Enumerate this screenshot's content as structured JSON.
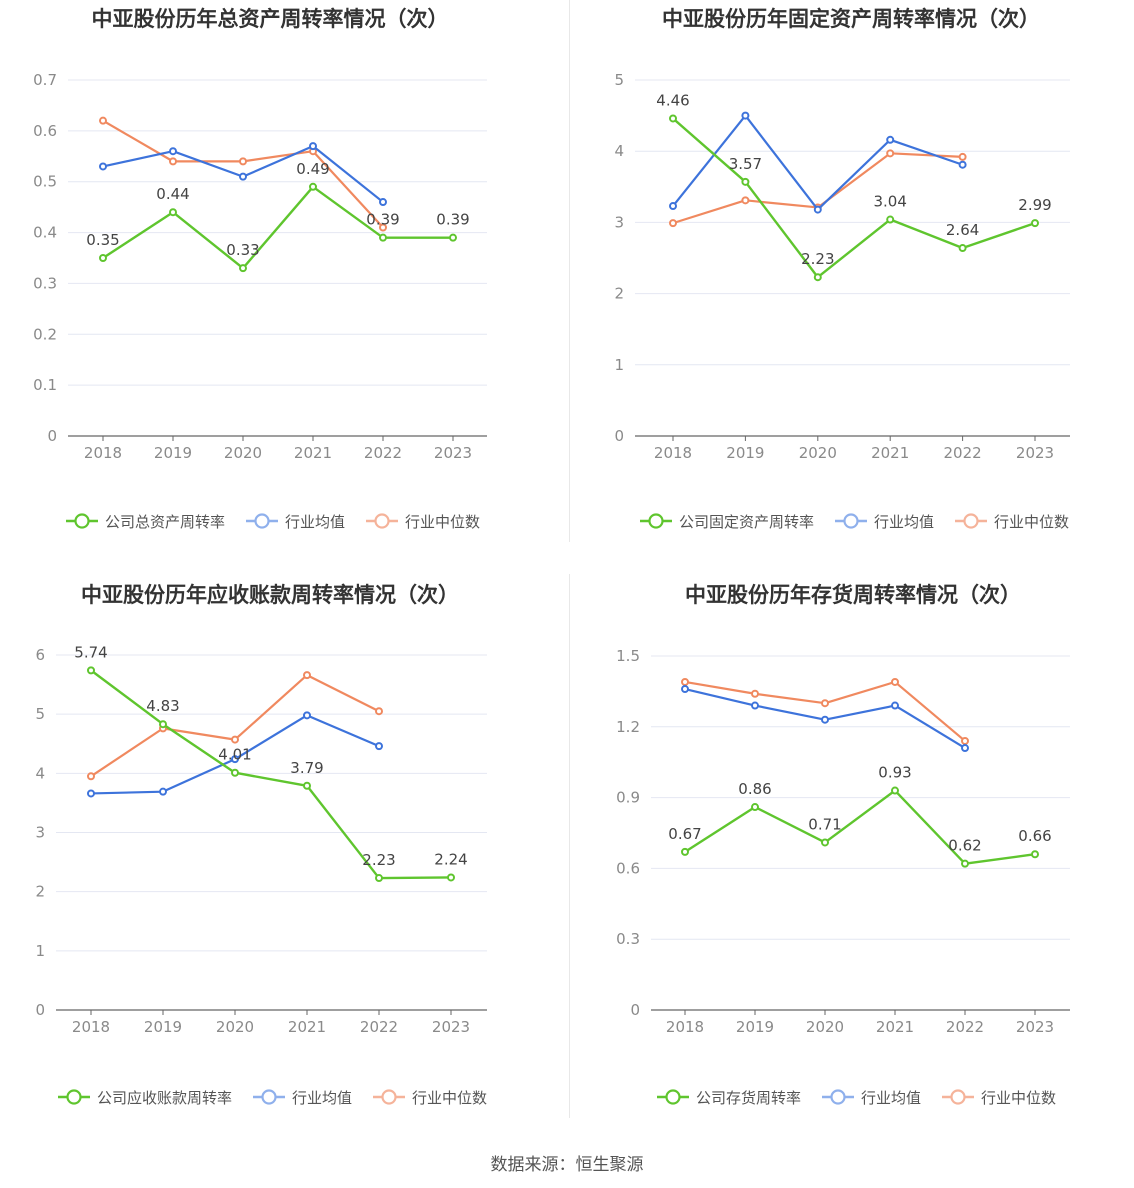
{
  "source": "数据来源：恒生聚源",
  "colors": {
    "company": "#5fc52e",
    "average": "#3d73db",
    "median": "#f0895f",
    "legend_avg": "#8fb0ec",
    "legend_med": "#f5b39a",
    "grid": "#e4e7f2",
    "axis": "#666666",
    "tick": "#8a8a8a",
    "title": "#333333"
  },
  "chart_data": [
    {
      "type": "line",
      "title": "中亚股份历年总资产周转率情况（次）",
      "categories": [
        "2018",
        "2019",
        "2020",
        "2021",
        "2022",
        "2023"
      ],
      "ylim": [
        0,
        0.7
      ],
      "yticks": [
        "0",
        "0.1",
        "0.2",
        "0.3",
        "0.4",
        "0.5",
        "0.6",
        "0.7"
      ],
      "legend": [
        "公司总资产周转率",
        "行业均值",
        "行业中位数"
      ],
      "series": [
        {
          "name": "公司总资产周转率",
          "role": "company",
          "values": [
            0.35,
            0.44,
            0.33,
            0.49,
            0.39,
            0.39
          ],
          "labels": [
            "0.35",
            "0.44",
            "0.33",
            "0.49",
            "0.39",
            "0.39"
          ]
        },
        {
          "name": "行业均值",
          "role": "average",
          "values": [
            0.53,
            0.56,
            0.51,
            0.57,
            0.46,
            null
          ]
        },
        {
          "name": "行业中位数",
          "role": "median",
          "values": [
            0.62,
            0.54,
            0.54,
            0.56,
            0.41,
            null
          ]
        }
      ]
    },
    {
      "type": "line",
      "title": "中亚股份历年固定资产周转率情况（次）",
      "categories": [
        "2018",
        "2019",
        "2020",
        "2021",
        "2022",
        "2023"
      ],
      "ylim": [
        0,
        5
      ],
      "yticks": [
        "0",
        "1",
        "2",
        "3",
        "4",
        "5"
      ],
      "legend": [
        "公司固定资产周转率",
        "行业均值",
        "行业中位数"
      ],
      "series": [
        {
          "name": "公司固定资产周转率",
          "role": "company",
          "values": [
            4.46,
            3.57,
            2.23,
            3.04,
            2.64,
            2.99
          ],
          "labels": [
            "4.46",
            "3.57",
            "2.23",
            "3.04",
            "2.64",
            "2.99"
          ]
        },
        {
          "name": "行业均值",
          "role": "average",
          "values": [
            3.23,
            4.5,
            3.18,
            4.16,
            3.81,
            null
          ]
        },
        {
          "name": "行业中位数",
          "role": "median",
          "values": [
            2.99,
            3.31,
            3.21,
            3.97,
            3.92,
            null
          ]
        }
      ]
    },
    {
      "type": "line",
      "title": "中亚股份历年应收账款周转率情况（次）",
      "categories": [
        "2018",
        "2019",
        "2020",
        "2021",
        "2022",
        "2023"
      ],
      "ylim": [
        0,
        6
      ],
      "yticks": [
        "0",
        "1",
        "2",
        "3",
        "4",
        "5",
        "6"
      ],
      "legend": [
        "公司应收账款周转率",
        "行业均值",
        "行业中位数"
      ],
      "series": [
        {
          "name": "公司应收账款周转率",
          "role": "company",
          "values": [
            5.74,
            4.83,
            4.01,
            3.79,
            2.23,
            2.24
          ],
          "labels": [
            "5.74",
            "4.83",
            "4.01",
            "3.79",
            "2.23",
            "2.24"
          ]
        },
        {
          "name": "行业均值",
          "role": "average",
          "values": [
            3.66,
            3.69,
            4.24,
            4.98,
            4.46,
            null
          ]
        },
        {
          "name": "行业中位数",
          "role": "median",
          "values": [
            3.95,
            4.76,
            4.57,
            5.66,
            5.05,
            null
          ]
        }
      ]
    },
    {
      "type": "line",
      "title": "中亚股份历年存货周转率情况（次）",
      "categories": [
        "2018",
        "2019",
        "2020",
        "2021",
        "2022",
        "2023"
      ],
      "ylim": [
        0,
        1.5
      ],
      "yticks": [
        "0",
        "0.3",
        "0.6",
        "0.9",
        "1.2",
        "1.5"
      ],
      "legend": [
        "公司存货周转率",
        "行业均值",
        "行业中位数"
      ],
      "series": [
        {
          "name": "公司存货周转率",
          "role": "company",
          "values": [
            0.67,
            0.86,
            0.71,
            0.93,
            0.62,
            0.66
          ],
          "labels": [
            "0.67",
            "0.86",
            "0.71",
            "0.93",
            "0.62",
            "0.66"
          ]
        },
        {
          "name": "行业均值",
          "role": "average",
          "values": [
            1.36,
            1.29,
            1.23,
            1.29,
            1.11,
            null
          ]
        },
        {
          "name": "行业中位数",
          "role": "median",
          "values": [
            1.39,
            1.34,
            1.3,
            1.39,
            1.14,
            null
          ]
        }
      ]
    }
  ]
}
